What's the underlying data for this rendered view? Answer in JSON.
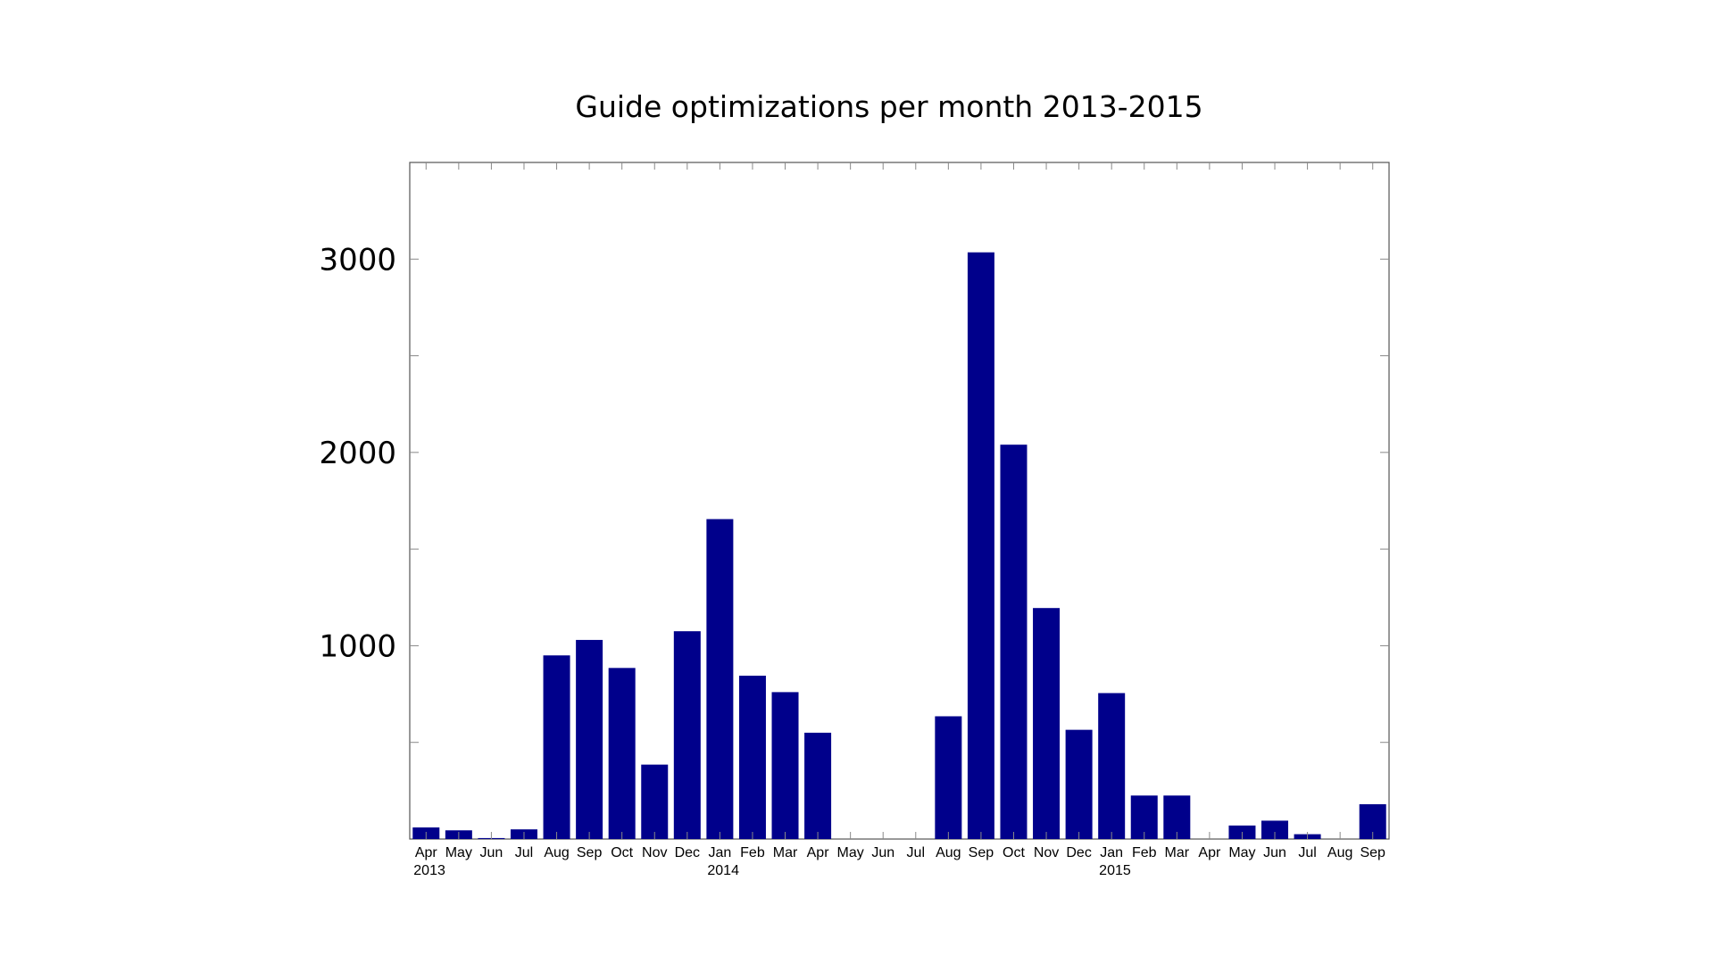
{
  "chart_data": {
    "type": "bar",
    "title": "Guide optimizations per month 2013-2015",
    "xlabel": "",
    "ylabel": "",
    "ylim": [
      0,
      3500
    ],
    "y_ticks": [
      1000,
      2000,
      3000
    ],
    "y_tick_labels": [
      "1000",
      "2000",
      "3000"
    ],
    "grid": false,
    "bar_color": "#00008B",
    "categories": [
      "Apr",
      "May",
      "Jun",
      "Jul",
      "Aug",
      "Sep",
      "Oct",
      "Nov",
      "Dec",
      "Jan",
      "Feb",
      "Mar",
      "Apr",
      "May",
      "Jun",
      "Jul",
      "Aug",
      "Sep",
      "Oct",
      "Nov",
      "Dec",
      "Jan",
      "Feb",
      "Mar",
      "Apr",
      "May",
      "Jun",
      "Jul",
      "Aug",
      "Sep"
    ],
    "year_labels": [
      {
        "index": 0,
        "label": "2013"
      },
      {
        "index": 9,
        "label": "2014"
      },
      {
        "index": 21,
        "label": "2015"
      }
    ],
    "values": [
      60,
      45,
      5,
      50,
      950,
      1030,
      885,
      385,
      1075,
      1655,
      845,
      760,
      550,
      0,
      0,
      0,
      635,
      3035,
      2040,
      1195,
      565,
      755,
      225,
      225,
      0,
      70,
      95,
      25,
      0,
      180
    ]
  }
}
